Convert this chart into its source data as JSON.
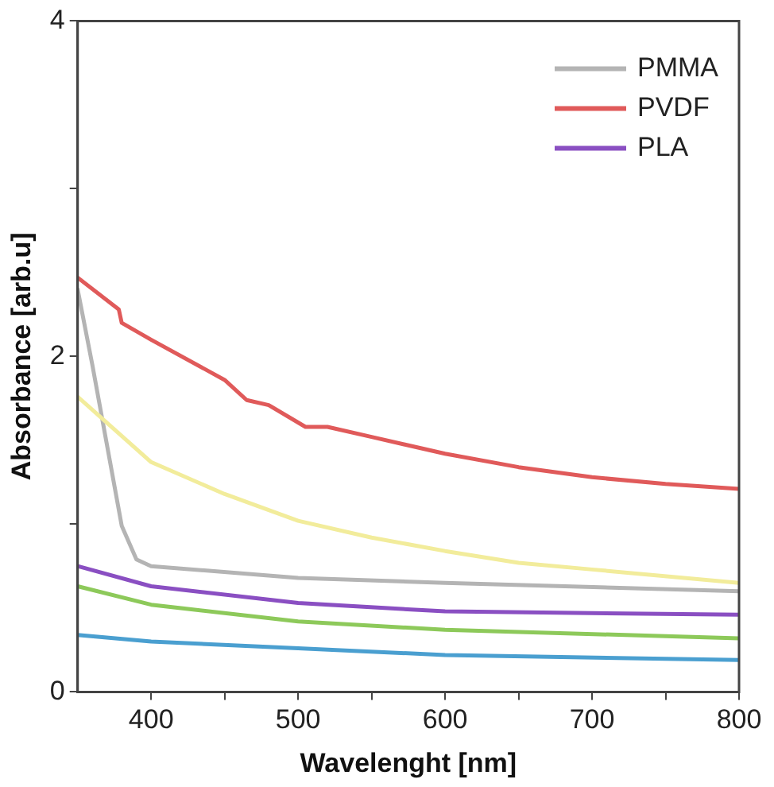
{
  "chart_data": {
    "type": "line",
    "xlabel": "Wavelenght [nm]",
    "ylabel": "Absorbance [arb.u]",
    "xlim": [
      350,
      800
    ],
    "ylim": [
      0,
      4
    ],
    "xticks": [
      400,
      {
        "value": 450,
        "label": null
      },
      500,
      {
        "value": 550,
        "label": null
      },
      600,
      {
        "value": 650,
        "label": null
      },
      700,
      {
        "value": 750,
        "label": null
      },
      800
    ],
    "yticks": [
      0,
      {
        "value": 1,
        "label": null
      },
      2,
      {
        "value": 3,
        "label": null
      },
      4
    ],
    "grid": false,
    "legend": "top right",
    "marker": "none",
    "line_style": "solid",
    "series": [
      {
        "color": "#f2ec9b",
        "x": [
          350,
          400,
          450,
          500,
          550,
          600,
          650,
          700,
          800
        ],
        "values": [
          1.76,
          1.37,
          1.18,
          1.02,
          0.92,
          0.84,
          0.77,
          0.73,
          0.65
        ]
      },
      {
        "color": "#8dc95a",
        "x": [
          350,
          400,
          500,
          600,
          800
        ],
        "values": [
          0.63,
          0.52,
          0.42,
          0.37,
          0.32
        ]
      },
      {
        "name": "PMMA",
        "color": "#b4b4b4",
        "x": [
          350,
          360,
          370,
          380,
          390,
          400,
          500,
          600,
          800
        ],
        "values": [
          2.4,
          1.95,
          1.47,
          0.99,
          0.79,
          0.75,
          0.68,
          0.65,
          0.6
        ]
      },
      {
        "name": "PVDF",
        "color": "#e05a5a",
        "x": [
          350,
          378,
          380,
          400,
          450,
          465,
          480,
          505,
          520,
          550,
          600,
          650,
          700,
          750,
          800
        ],
        "values": [
          2.47,
          2.28,
          2.2,
          2.1,
          1.86,
          1.74,
          1.71,
          1.58,
          1.58,
          1.52,
          1.42,
          1.34,
          1.28,
          1.24,
          1.21
        ]
      },
      {
        "color": "#4a9fd0",
        "x": [
          350,
          400,
          500,
          600,
          800
        ],
        "values": [
          0.34,
          0.3,
          0.26,
          0.22,
          0.19
        ]
      },
      {
        "name": "PLA",
        "color": "#8a4fc2",
        "x": [
          350,
          400,
          500,
          600,
          800
        ],
        "values": [
          0.75,
          0.63,
          0.53,
          0.48,
          0.46
        ]
      }
    ]
  }
}
